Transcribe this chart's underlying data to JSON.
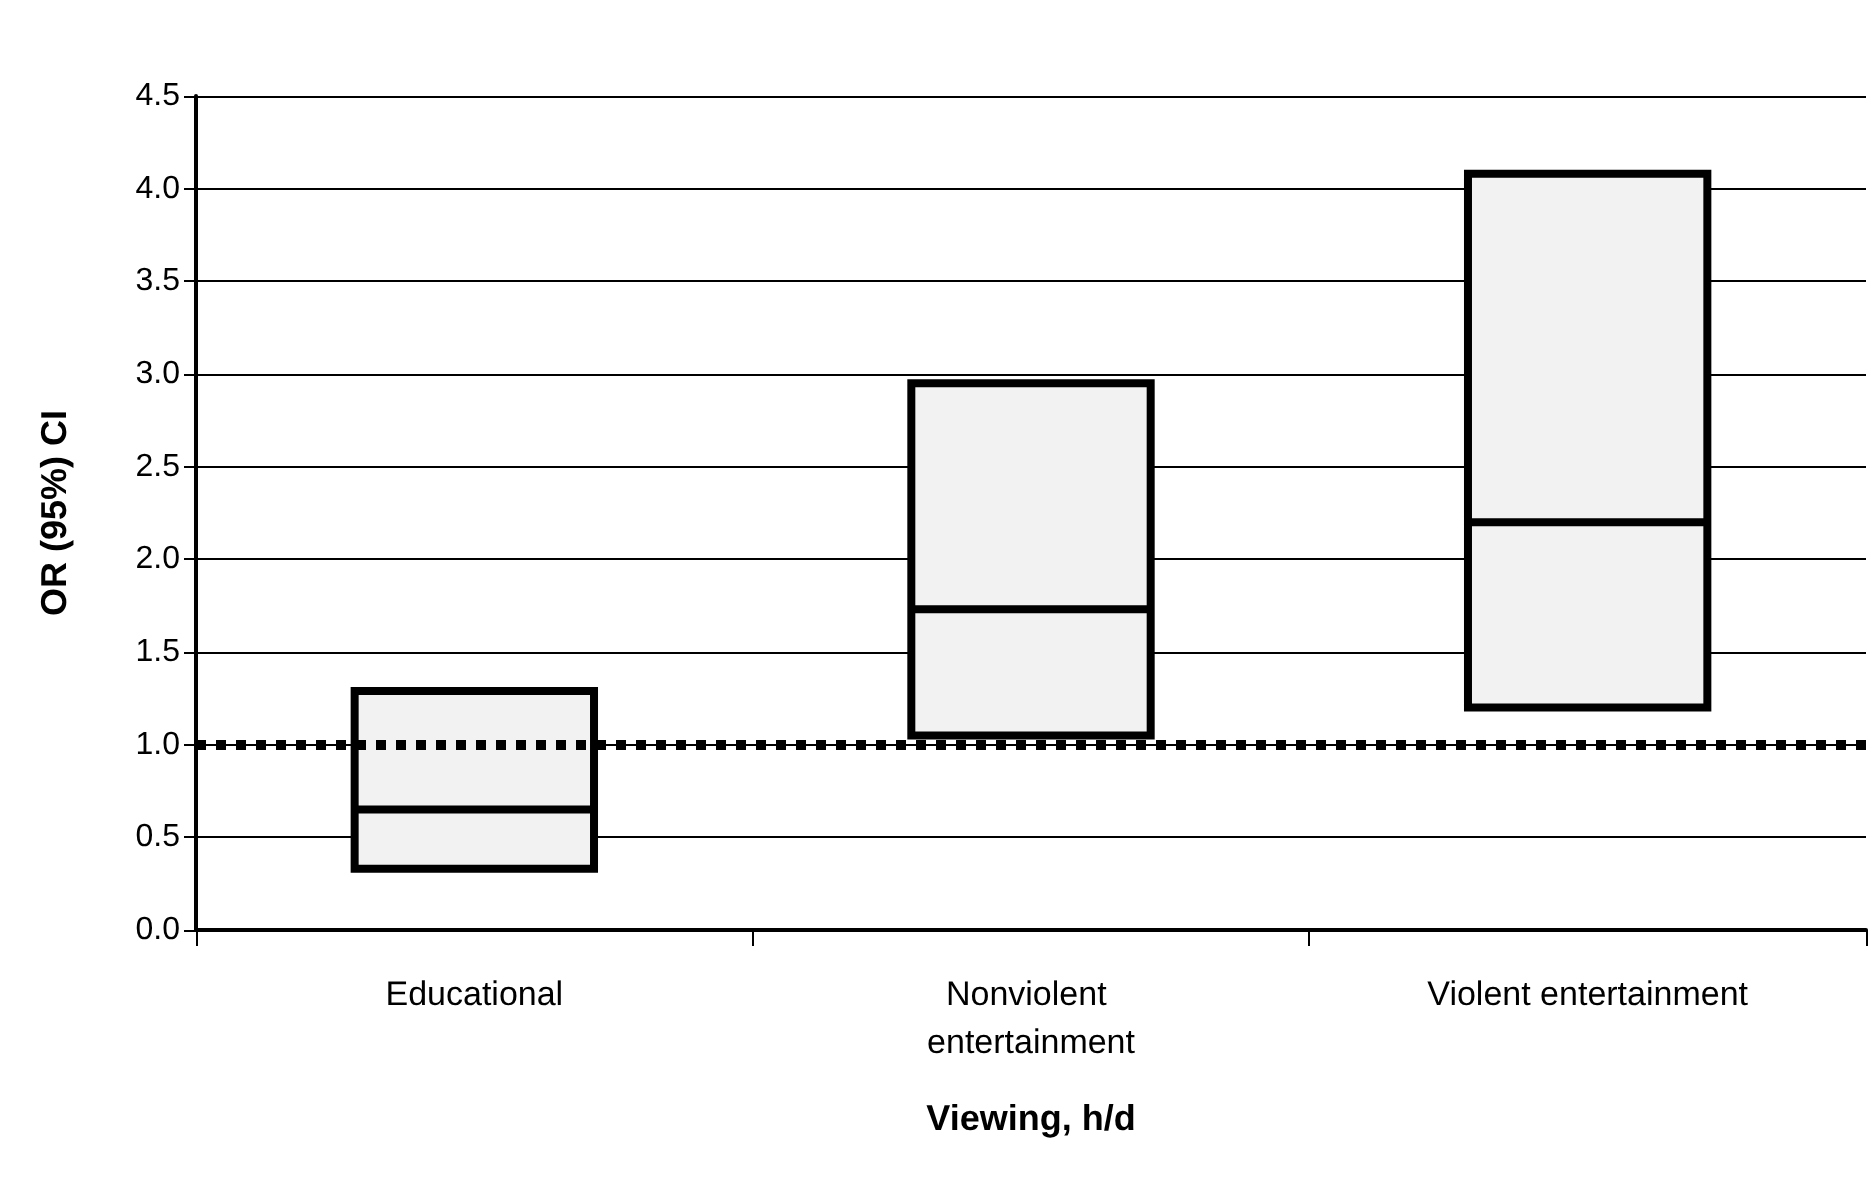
{
  "chart_data": {
    "type": "box",
    "xlabel": "Viewing, h/d",
    "ylabel": "OR (95%) CI",
    "categories": [
      "Educational",
      "Nonviolent entertainment",
      "Violent entertainment"
    ],
    "color": "#f2f2f2",
    "boxes": [
      {
        "low": 0.33,
        "q1": 0.33,
        "median": 0.65,
        "q3": 1.29,
        "high": 1.29
      },
      {
        "low": 1.05,
        "q1": 1.05,
        "median": 1.73,
        "q3": 2.95,
        "high": 2.95
      },
      {
        "low": 1.2,
        "q1": 1.2,
        "median": 2.2,
        "q3": 4.08,
        "high": 4.08
      }
    ],
    "ylim": [
      0,
      4.5
    ],
    "yticks": [
      {
        "value": 0,
        "label": "0.0"
      },
      0.5,
      {
        "value": 1,
        "label": "1.0"
      },
      1.5,
      {
        "value": 2,
        "label": "2.0"
      },
      2.5,
      {
        "value": 3,
        "label": "3.0"
      },
      3.5,
      {
        "value": 4,
        "label": "4.0"
      },
      4.5
    ],
    "grid": "y",
    "ref_lines": [
      {
        "axis": "y",
        "value": 1,
        "color": "#000000",
        "line_style": "dotted"
      }
    ]
  }
}
